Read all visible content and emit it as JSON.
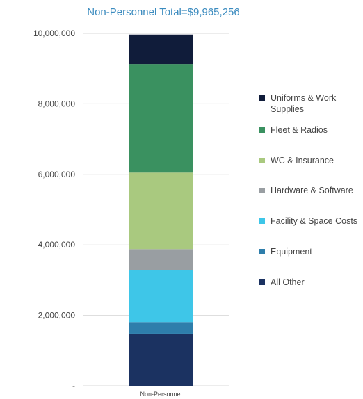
{
  "chart_data": {
    "type": "bar",
    "stacked": true,
    "title": "Non-Personnel Total=$9,965,256",
    "categories": [
      "Non-Personnel"
    ],
    "ylim": [
      0,
      10000000
    ],
    "yticks": [
      {
        "value": 0,
        "label": "-"
      },
      {
        "value": 2000000,
        "label": "2,000,000"
      },
      {
        "value": 4000000,
        "label": "4,000,000"
      },
      {
        "value": 6000000,
        "label": "6,000,000"
      },
      {
        "value": 8000000,
        "label": "8,000,000"
      },
      {
        "value": 10000000,
        "label": "10,000,000"
      }
    ],
    "grid": true,
    "legend_position": "right",
    "series": [
      {
        "name": "All Other",
        "values": [
          1480000
        ],
        "color": "#1b3261"
      },
      {
        "name": "Equipment",
        "values": [
          330000
        ],
        "color": "#2e7eab"
      },
      {
        "name": "Facility & Space Costs",
        "values": [
          1480000
        ],
        "color": "#3ec6e8"
      },
      {
        "name": "Hardware & Software",
        "values": [
          590000
        ],
        "color": "#999ea2"
      },
      {
        "name": "WC & Insurance",
        "values": [
          2170000
        ],
        "color": "#a9c97f"
      },
      {
        "name": "Fleet & Radios",
        "values": [
          3080000
        ],
        "color": "#3a9160"
      },
      {
        "name": "Uniforms & Work Supplies",
        "values": [
          835256
        ],
        "color": "#101c3a"
      }
    ]
  }
}
